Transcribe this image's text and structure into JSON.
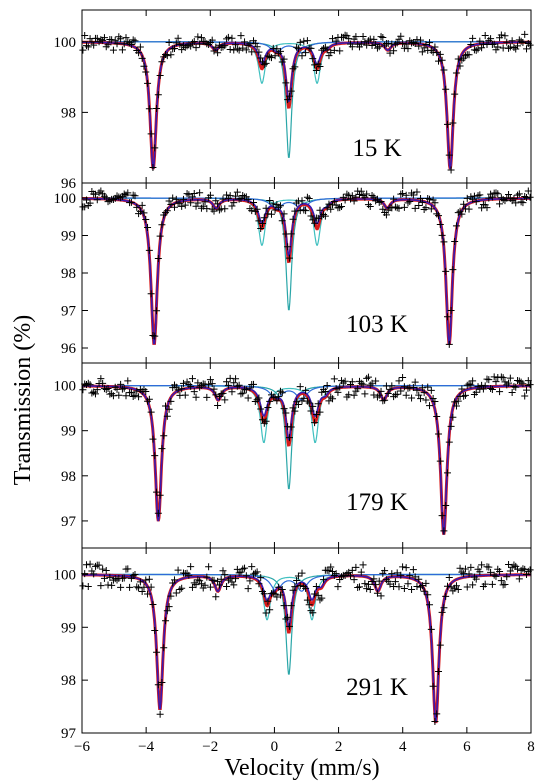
{
  "chart_data": {
    "type": "line",
    "ylabel": "Transmission (%)",
    "xlabel": "Velocity (mm/s)",
    "xlim": [
      -6,
      8
    ],
    "xticks": [
      -6,
      -4,
      -2,
      0,
      2,
      4,
      6,
      8
    ],
    "legend": "none",
    "grid": false,
    "colors": {
      "data_marker": "#000000",
      "total_fit": "#d81b1b",
      "sextet_fit": "#3a1ab0",
      "doublet_fit": "#2aa6a8",
      "center_line": "#2f6bd8",
      "extra_line": "#40c0c0"
    },
    "panels": [
      {
        "label": "15 K",
        "ylim": [
          96,
          100.9
        ],
        "yticks": [
          96,
          98,
          100
        ],
        "sextet": {
          "center": 0.85,
          "outer_half_split": 4.63,
          "depths": [
            3.6,
            0.22,
            0.11,
            0.11,
            0.22,
            3.6
          ]
        },
        "doublet": {
          "center": 0.47,
          "split": 1.72,
          "depth": 1.3
        },
        "central_dip": {
          "center": 0.45,
          "depth": 3.3
        }
      },
      {
        "label": "103 K",
        "ylim": [
          95.6,
          100.4
        ],
        "yticks": [
          96,
          97,
          98,
          99,
          100
        ],
        "sextet": {
          "center": 0.85,
          "outer_half_split": 4.6,
          "depths": [
            3.9,
            0.25,
            0.12,
            0.12,
            0.25,
            3.9
          ]
        },
        "doublet": {
          "center": 0.47,
          "split": 1.72,
          "depth": 1.4
        },
        "central_dip": {
          "center": 0.45,
          "depth": 3.0
        }
      },
      {
        "label": "179 K",
        "ylim": [
          96.4,
          100.5
        ],
        "yticks": [
          97,
          98,
          99,
          100
        ],
        "sextet": {
          "center": 0.83,
          "outer_half_split": 4.45,
          "depths": [
            3.0,
            0.3,
            0.13,
            0.13,
            0.3,
            3.3
          ]
        },
        "doublet": {
          "center": 0.47,
          "split": 1.6,
          "depth": 1.4
        },
        "central_dip": {
          "center": 0.45,
          "depth": 2.3
        }
      },
      {
        "label": "291 K",
        "ylim": [
          97,
          100.5
        ],
        "yticks": [
          97,
          98,
          99,
          100
        ],
        "sextet": {
          "center": 0.73,
          "outer_half_split": 4.3,
          "depths": [
            2.55,
            0.3,
            0.15,
            0.15,
            0.3,
            2.8
          ]
        },
        "doublet": {
          "center": 0.47,
          "split": 1.4,
          "depth": 0.95
        },
        "central_dip": {
          "center": 0.45,
          "depth": 1.9
        }
      }
    ]
  }
}
